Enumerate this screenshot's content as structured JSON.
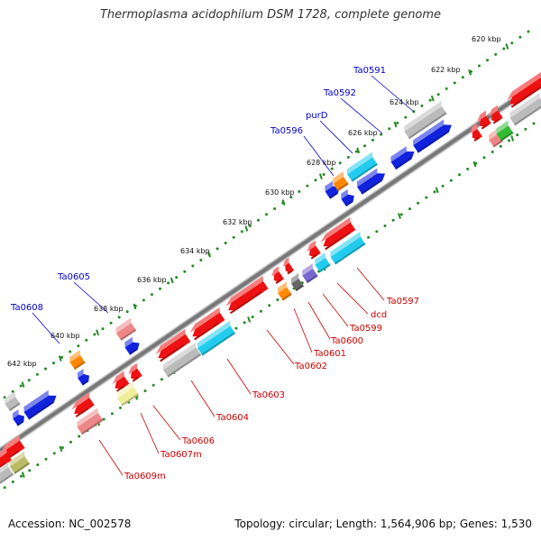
{
  "title": "Thermoplasma acidophilum DSM 1728, complete genome",
  "footer": {
    "accession": "Accession: NC_002578",
    "summary": "Topology: circular; Length: 1,564,906 bp; Genes: 1,530"
  },
  "scale_labels": [
    "620 kbp",
    "622 kbp",
    "624 kbp",
    "626 kbp",
    "628 kbp",
    "630 kbp",
    "632 kbp",
    "634 kbp",
    "636 kbp",
    "638 kbp",
    "640 kbp",
    "642 kbp"
  ],
  "gene_labels_above": [
    "Ta0591",
    "Ta0592",
    "purD",
    "Ta0596",
    "Ta0605",
    "Ta0608"
  ],
  "gene_labels_below": [
    "Ta0597",
    "dcd",
    "Ta0599",
    "Ta0600",
    "Ta0601",
    "Ta0602",
    "Ta0603",
    "Ta0604",
    "Ta0606",
    "Ta0607m",
    "Ta0609m"
  ],
  "colors": {
    "forward_label": "#0000cc",
    "reverse_label": "#cc0000",
    "backbone": "#777777",
    "scale_dots": "#228b22",
    "red": "#ee1111",
    "blue": "#1122dd",
    "cyan": "#22ccee",
    "gray": "#bbbbbb",
    "orange": "#ff8800",
    "pink": "#ee8888",
    "green": "#33bb33",
    "purple": "#7766cc",
    "yellow": "#eeee99",
    "olive": "#bbbb66",
    "darkgray": "#666666"
  }
}
